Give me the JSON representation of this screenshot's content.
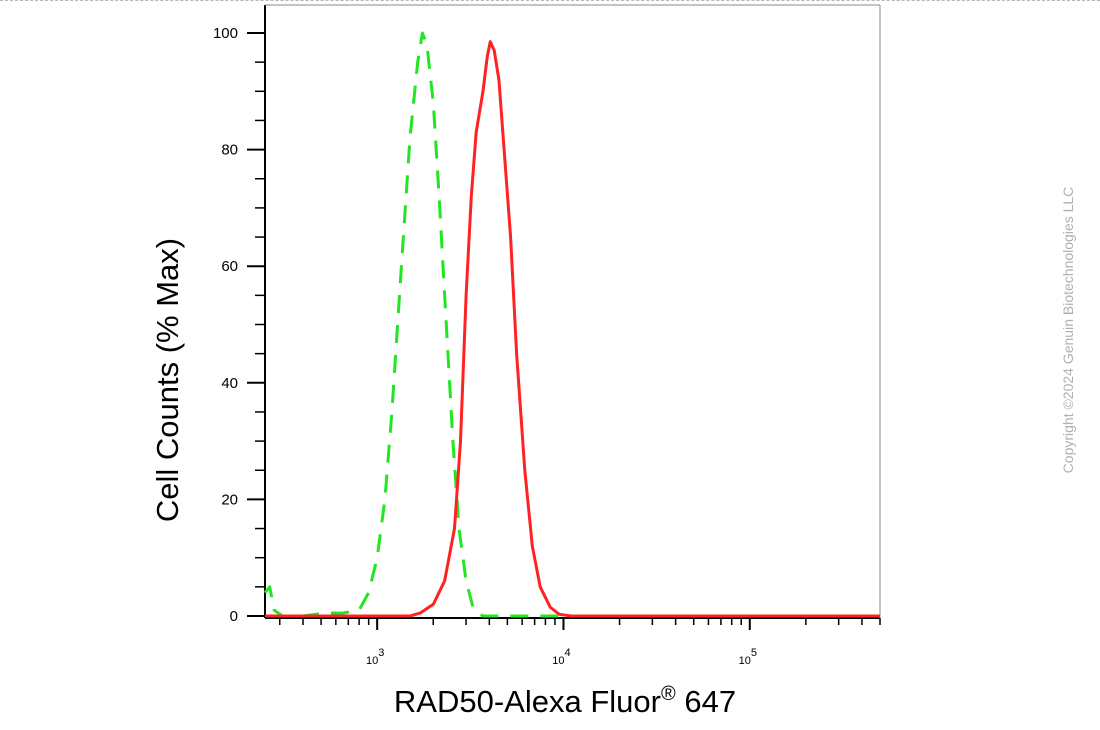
{
  "chart_data": {
    "type": "line",
    "xlabel_main": "RAD50-Alexa Fluor",
    "xlabel_sup": "®",
    "xlabel_end": " 647",
    "ylabel": "Cell Counts (% Max)",
    "x_scale": "log",
    "xlim": [
      250,
      500000
    ],
    "ylim": [
      0,
      100
    ],
    "y_ticks": [
      0,
      20,
      40,
      60,
      80,
      100
    ],
    "x_ticks": [
      {
        "value": 1000,
        "base": "10",
        "exp": "3"
      },
      {
        "value": 10000,
        "base": "10",
        "exp": "4"
      },
      {
        "value": 100000,
        "base": "10",
        "exp": "5"
      }
    ],
    "grid": false,
    "series": [
      {
        "style": "dashed",
        "color": "#22e622",
        "points": [
          [
            250,
            4
          ],
          [
            265,
            5
          ],
          [
            280,
            1
          ],
          [
            310,
            0
          ],
          [
            400,
            0
          ],
          [
            520,
            0.5
          ],
          [
            650,
            0.5
          ],
          [
            800,
            1
          ],
          [
            900,
            4
          ],
          [
            1000,
            10
          ],
          [
            1100,
            20
          ],
          [
            1200,
            35
          ],
          [
            1350,
            60
          ],
          [
            1500,
            82
          ],
          [
            1650,
            95
          ],
          [
            1750,
            100
          ],
          [
            1850,
            98
          ],
          [
            2000,
            88
          ],
          [
            2150,
            72
          ],
          [
            2350,
            50
          ],
          [
            2550,
            30
          ],
          [
            2750,
            15
          ],
          [
            3000,
            6
          ],
          [
            3300,
            1
          ],
          [
            3700,
            0
          ],
          [
            10000,
            0
          ],
          [
            100000,
            0
          ],
          [
            500000,
            0
          ]
        ]
      },
      {
        "style": "solid",
        "color": "#ff2222",
        "points": [
          [
            250,
            0
          ],
          [
            1500,
            0
          ],
          [
            1700,
            0.5
          ],
          [
            2000,
            2
          ],
          [
            2300,
            6
          ],
          [
            2600,
            15
          ],
          [
            2800,
            30
          ],
          [
            3000,
            55
          ],
          [
            3200,
            72
          ],
          [
            3400,
            83
          ],
          [
            3700,
            90
          ],
          [
            3900,
            96
          ],
          [
            4050,
            98.5
          ],
          [
            4250,
            97
          ],
          [
            4500,
            92
          ],
          [
            4800,
            80
          ],
          [
            5200,
            65
          ],
          [
            5600,
            45
          ],
          [
            6200,
            25
          ],
          [
            6800,
            12
          ],
          [
            7500,
            5
          ],
          [
            8500,
            1.5
          ],
          [
            9500,
            0.3
          ],
          [
            11000,
            0
          ],
          [
            100000,
            0
          ],
          [
            500000,
            0
          ]
        ]
      }
    ]
  },
  "copyright": "Copyright ©2024 Genuin Biotechnologies LLC"
}
